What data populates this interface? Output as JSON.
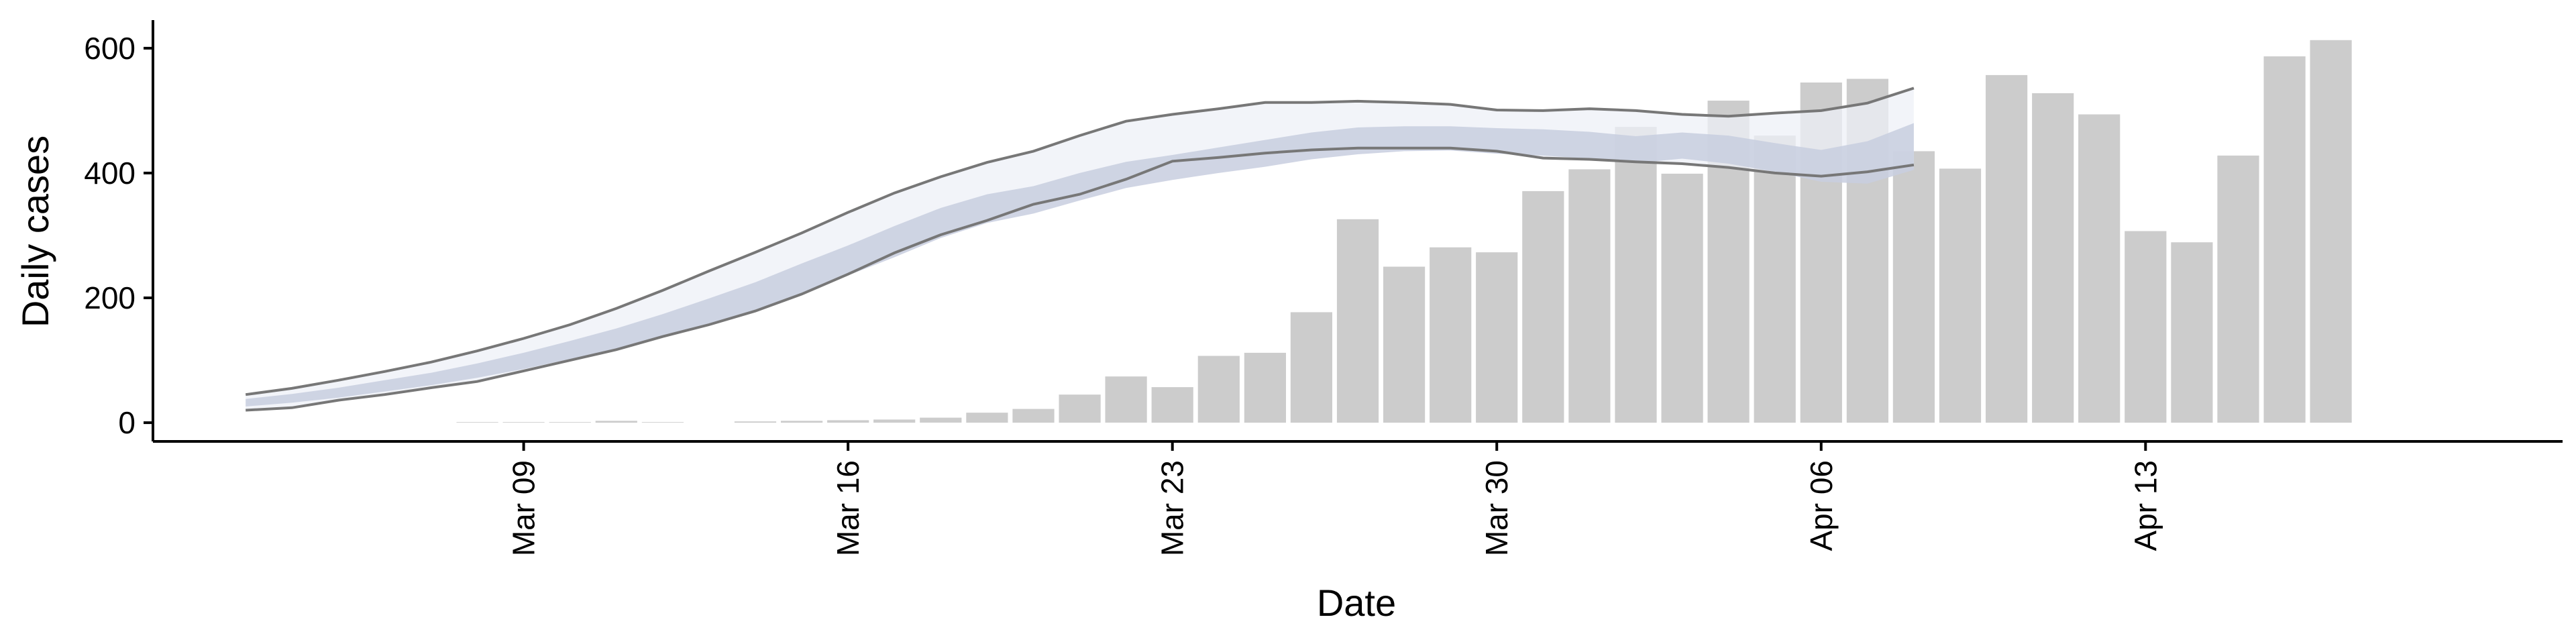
{
  "chart_data": {
    "type": "bar",
    "xlabel": "Date",
    "ylabel": "Daily cases",
    "ylim": [
      -30,
      645
    ],
    "yticks": [
      0,
      200,
      400,
      600
    ],
    "xlim": [
      "2020-03-01",
      "2020-04-22"
    ],
    "xticks": [
      {
        "date": "2020-03-09",
        "label": "Mar 09"
      },
      {
        "date": "2020-03-16",
        "label": "Mar 16"
      },
      {
        "date": "2020-03-23",
        "label": "Mar 23"
      },
      {
        "date": "2020-03-30",
        "label": "Mar 30"
      },
      {
        "date": "2020-04-06",
        "label": "Apr 06"
      },
      {
        "date": "2020-04-13",
        "label": "Apr 13"
      }
    ],
    "grid": false,
    "legend": "none",
    "bars": {
      "name": "Daily cases",
      "color": "#cccccc",
      "x": [
        "2020-03-08",
        "2020-03-09",
        "2020-03-10",
        "2020-03-11",
        "2020-03-12",
        "2020-03-13",
        "2020-03-14",
        "2020-03-15",
        "2020-03-16",
        "2020-03-17",
        "2020-03-18",
        "2020-03-19",
        "2020-03-20",
        "2020-03-21",
        "2020-03-22",
        "2020-03-23",
        "2020-03-24",
        "2020-03-25",
        "2020-03-26",
        "2020-03-27",
        "2020-03-28",
        "2020-03-29",
        "2020-03-30",
        "2020-03-31",
        "2020-04-01",
        "2020-04-02",
        "2020-04-03",
        "2020-04-04",
        "2020-04-05",
        "2020-04-06",
        "2020-04-07",
        "2020-04-08",
        "2020-04-09",
        "2020-04-10",
        "2020-04-11",
        "2020-04-12",
        "2020-04-13",
        "2020-04-14",
        "2020-04-15",
        "2020-04-16",
        "2020-04-17",
        "2020-04-18"
      ],
      "values": [
        1,
        1,
        1,
        3,
        1,
        0,
        2,
        3,
        4,
        5,
        8,
        16,
        22,
        45,
        74,
        57,
        107,
        112,
        177,
        326,
        250,
        281,
        273,
        371,
        406,
        474,
        399,
        516,
        460,
        545,
        551,
        435,
        407,
        557,
        528,
        494,
        307,
        289,
        428,
        587,
        613,
        0
      ]
    },
    "fit": {
      "x": [
        "2020-03-03",
        "2020-03-04",
        "2020-03-05",
        "2020-03-06",
        "2020-03-07",
        "2020-03-08",
        "2020-03-09",
        "2020-03-10",
        "2020-03-11",
        "2020-03-12",
        "2020-03-13",
        "2020-03-14",
        "2020-03-15",
        "2020-03-16",
        "2020-03-17",
        "2020-03-18",
        "2020-03-19",
        "2020-03-20",
        "2020-03-21",
        "2020-03-22",
        "2020-03-23",
        "2020-03-24",
        "2020-03-25",
        "2020-03-26",
        "2020-03-27",
        "2020-03-28",
        "2020-03-29",
        "2020-03-30",
        "2020-03-31",
        "2020-04-01",
        "2020-04-02",
        "2020-04-03",
        "2020-04-04",
        "2020-04-05",
        "2020-04-06",
        "2020-04-07",
        "2020-04-08"
      ],
      "outer_color": "#eef0f7",
      "inner_color": "#c8cedf",
      "edge_color": "#777777",
      "outer_upper": [
        45,
        55,
        68,
        82,
        97,
        115,
        135,
        157,
        183,
        212,
        243,
        273,
        304,
        337,
        368,
        394,
        417,
        435,
        460,
        483,
        494,
        503,
        513,
        513,
        515,
        513,
        510,
        501,
        500,
        503,
        500,
        494,
        491,
        496,
        500,
        512,
        536
      ],
      "inner_upper": [
        38,
        46,
        56,
        68,
        80,
        95,
        112,
        131,
        151,
        174,
        199,
        225,
        255,
        284,
        315,
        344,
        366,
        379,
        400,
        418,
        429,
        441,
        453,
        465,
        473,
        475,
        475,
        472,
        470,
        466,
        459,
        465,
        460,
        448,
        437,
        451,
        480
      ],
      "inner_lower": [
        26,
        32,
        40,
        50,
        60,
        72,
        86,
        102,
        119,
        138,
        158,
        180,
        207,
        236,
        265,
        296,
        320,
        335,
        356,
        376,
        389,
        400,
        410,
        422,
        430,
        435,
        436,
        431,
        428,
        423,
        416,
        423,
        415,
        402,
        386,
        383,
        405
      ],
      "outer_lower": [
        20,
        24,
        36,
        45,
        56,
        66,
        83,
        100,
        117,
        138,
        157,
        179,
        206,
        238,
        272,
        301,
        324,
        350,
        366,
        390,
        419,
        425,
        432,
        437,
        440,
        440,
        440,
        435,
        424,
        422,
        418,
        415,
        409,
        400,
        395,
        402,
        413
      ]
    }
  }
}
